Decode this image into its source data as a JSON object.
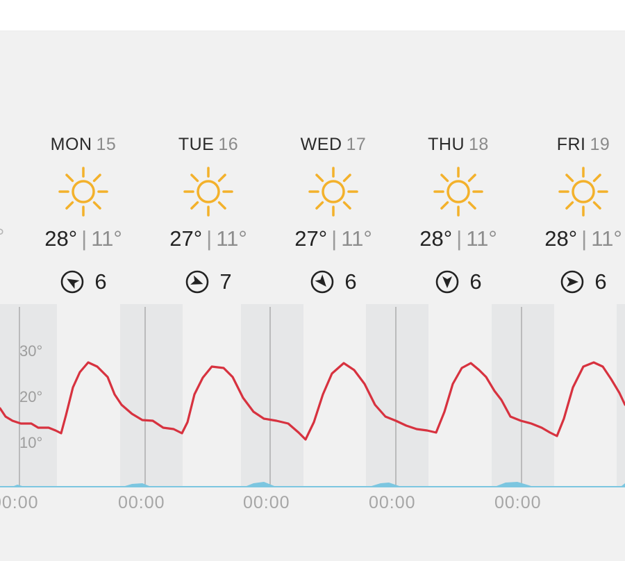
{
  "days": [
    {
      "name": "MON",
      "date": "15",
      "high": "28°",
      "low": "11°",
      "wind_speed": "6",
      "wind_dir_deg": 300,
      "icon": "sun-icon"
    },
    {
      "name": "TUE",
      "date": "16",
      "high": "27°",
      "low": "11°",
      "wind_speed": "7",
      "wind_dir_deg": 110,
      "icon": "sun-icon"
    },
    {
      "name": "WED",
      "date": "17",
      "high": "27°",
      "low": "11°",
      "wind_speed": "6",
      "wind_dir_deg": 140,
      "icon": "sun-icon"
    },
    {
      "name": "THU",
      "date": "18",
      "high": "28°",
      "low": "11°",
      "wind_speed": "6",
      "wind_dir_deg": 180,
      "icon": "sun-icon"
    },
    {
      "name": "FRI",
      "date": "19",
      "high": "28°",
      "low": "11°",
      "wind_speed": "6",
      "wind_dir_deg": 90,
      "icon": "sun-icon"
    }
  ],
  "left_partial_text": "°",
  "chart": {
    "y_ticks": [
      "30°",
      "20°",
      "10°"
    ],
    "hour_labels": [
      "00:00",
      "00:00",
      "00:00",
      "00:00",
      "00:00"
    ],
    "colors": {
      "temperature": "#d7323f",
      "precipitation": "#7cc6e0",
      "grid": "#9e9e9e",
      "night_band": "#e6e7e8"
    }
  }
}
